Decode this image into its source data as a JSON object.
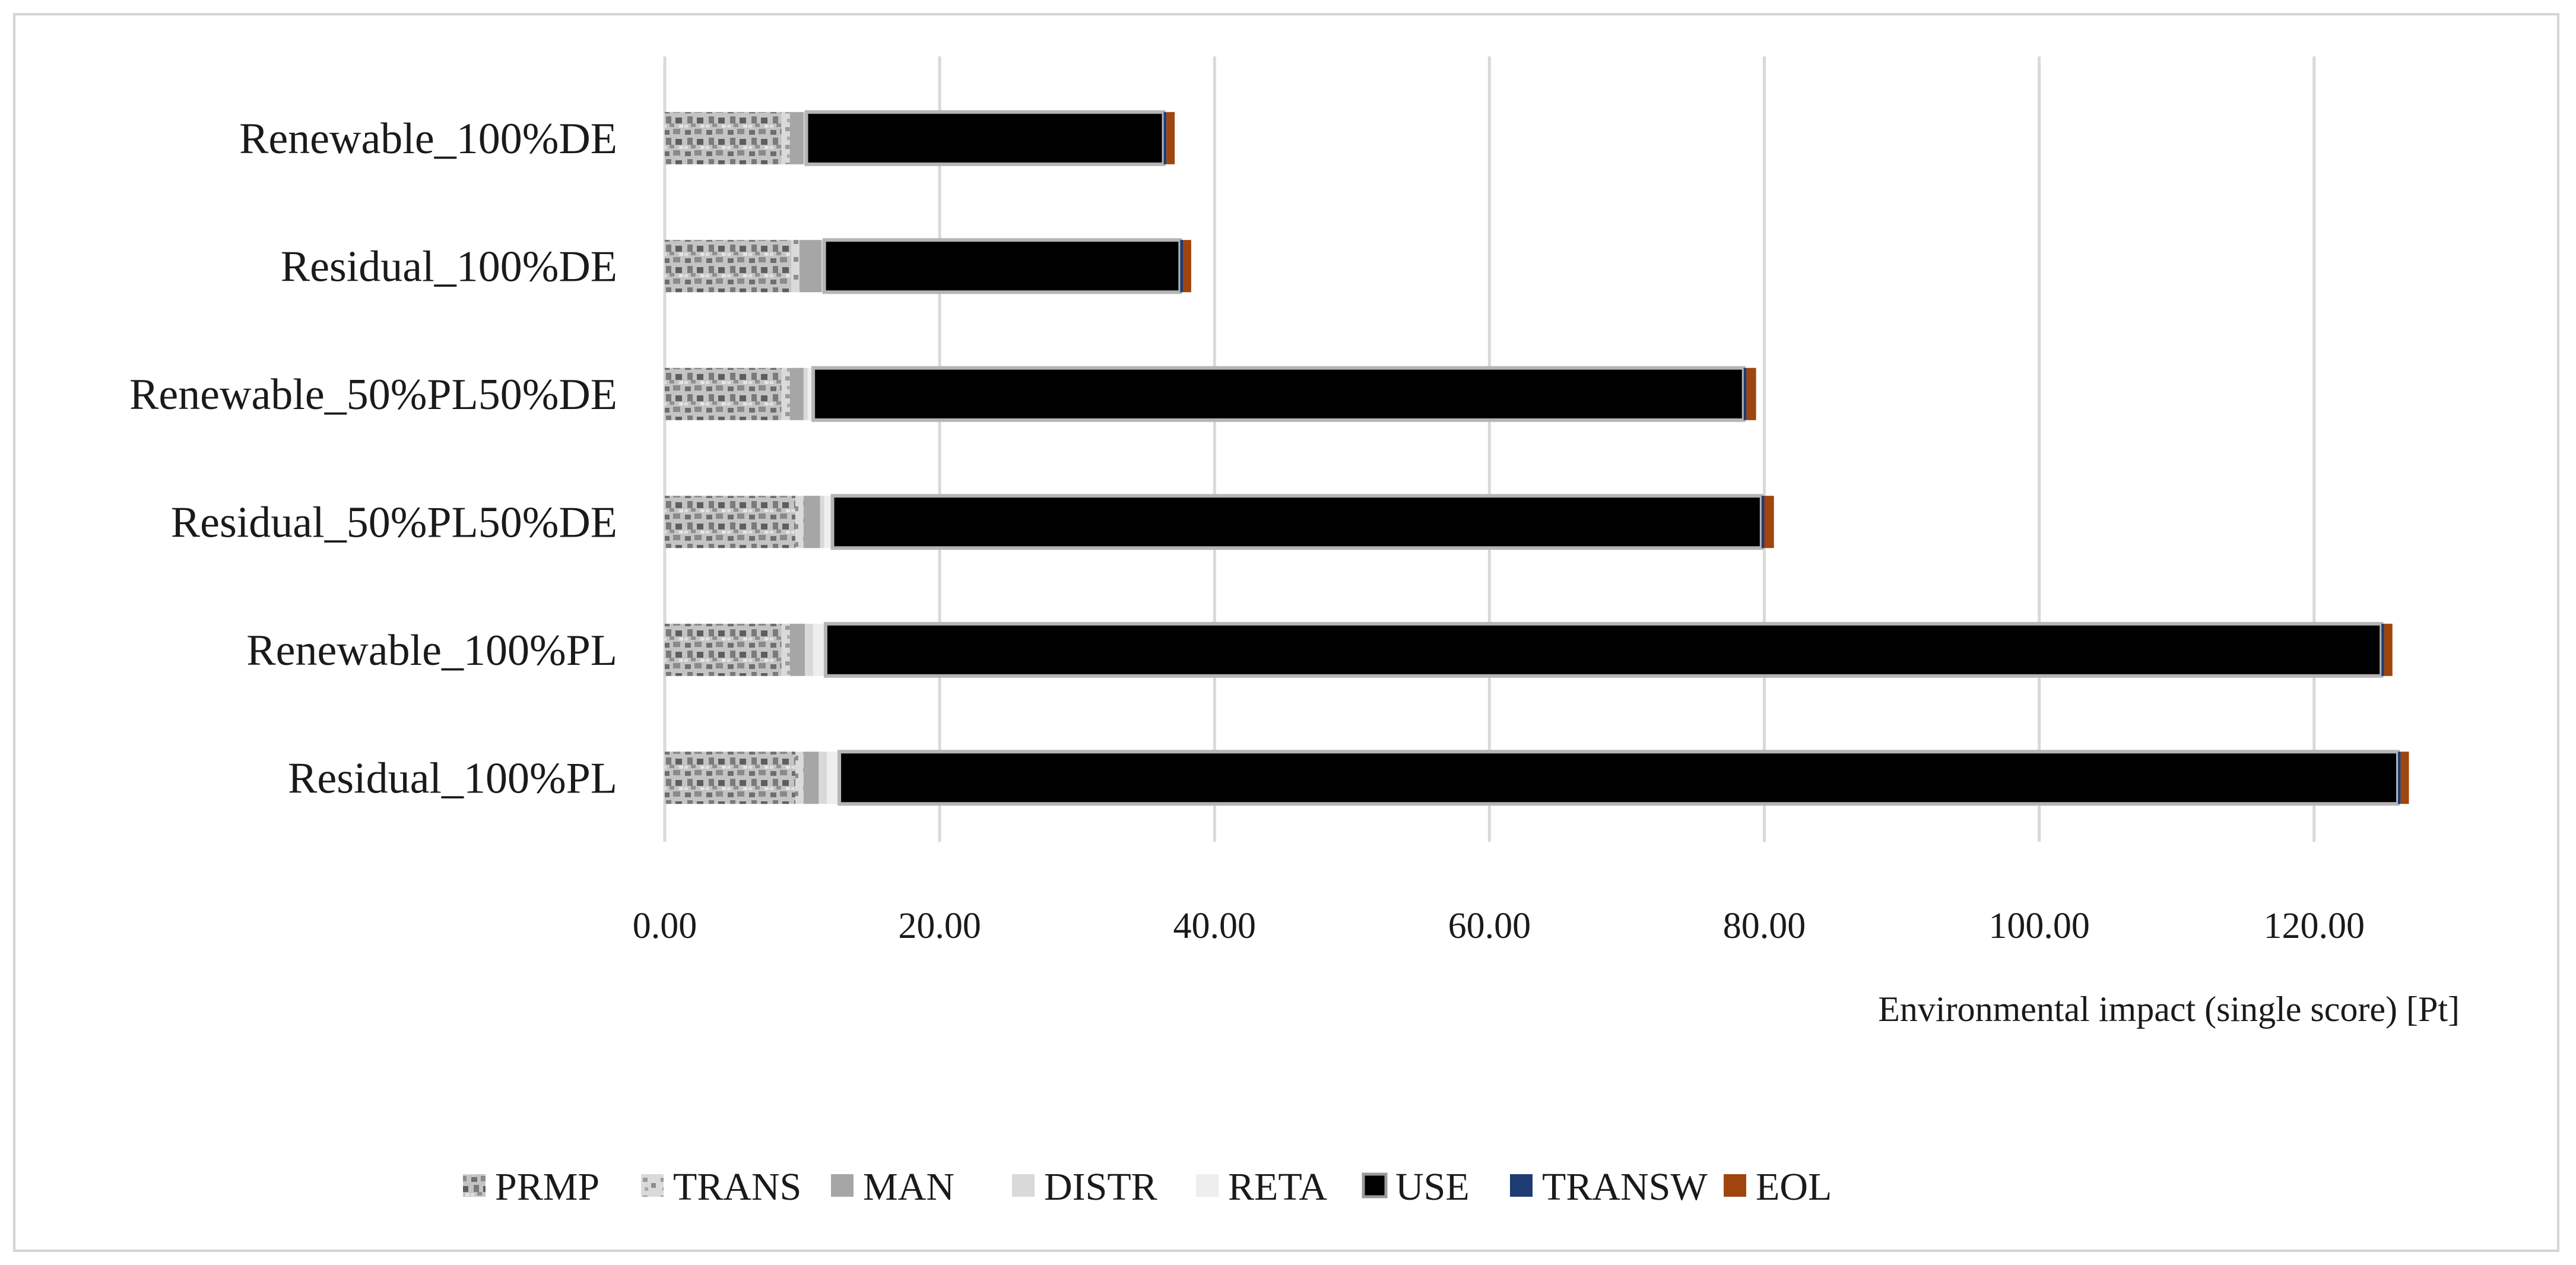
{
  "chart_data": {
    "type": "bar",
    "orientation": "horizontal",
    "stacked": true,
    "categories": [
      "Renewable_100%DE",
      "Residual_100%DE",
      "Renewable_50%PL50%DE",
      "Residual_50%PL50%DE",
      "Renewable_100%PL",
      "Residual_100%PL"
    ],
    "series": [
      {
        "name": "PRMP",
        "color": "#9e9e9e",
        "pattern": "mottled",
        "values": [
          8.5,
          9.2,
          8.5,
          9.5,
          8.5,
          9.5
        ]
      },
      {
        "name": "TRANS",
        "color": "#b8b8b8",
        "pattern": "mottled",
        "values": [
          0.6,
          0.6,
          0.6,
          0.6,
          0.6,
          0.6
        ]
      },
      {
        "name": "MAN",
        "color": "#a6a6a6",
        "pattern": "solid",
        "values": [
          1.0,
          1.6,
          1.0,
          1.2,
          1.1,
          1.1
        ]
      },
      {
        "name": "DISTR",
        "color": "#d9d9d9",
        "pattern": "solid",
        "values": [
          0.1,
          0.1,
          0.3,
          0.3,
          0.6,
          0.6
        ]
      },
      {
        "name": "RETA",
        "color": "#eeeeee",
        "pattern": "solid",
        "values": [
          0.1,
          0.1,
          0.4,
          0.6,
          0.9,
          0.9
        ]
      },
      {
        "name": "USE",
        "color": "#000000",
        "pattern": "outlined",
        "values": [
          26.0,
          25.9,
          67.7,
          67.6,
          113.2,
          113.4
        ]
      },
      {
        "name": "TRANSW",
        "color": "#1f3b73",
        "pattern": "solid",
        "values": [
          0.2,
          0.2,
          0.2,
          0.2,
          0.2,
          0.2
        ]
      },
      {
        "name": "EOL",
        "color": "#a0450e",
        "pattern": "solid",
        "values": [
          0.6,
          0.6,
          0.7,
          0.7,
          0.6,
          0.6
        ]
      }
    ],
    "x_ticks": [
      "0.00",
      "20.00",
      "40.00",
      "60.00",
      "80.00",
      "100.00",
      "120.00"
    ],
    "xlim": [
      0,
      128
    ],
    "xlabel": "Environmental impact (single score) [Pt]",
    "ylabel": "",
    "title": "",
    "grid": "vertical",
    "legend_position": "bottom"
  }
}
